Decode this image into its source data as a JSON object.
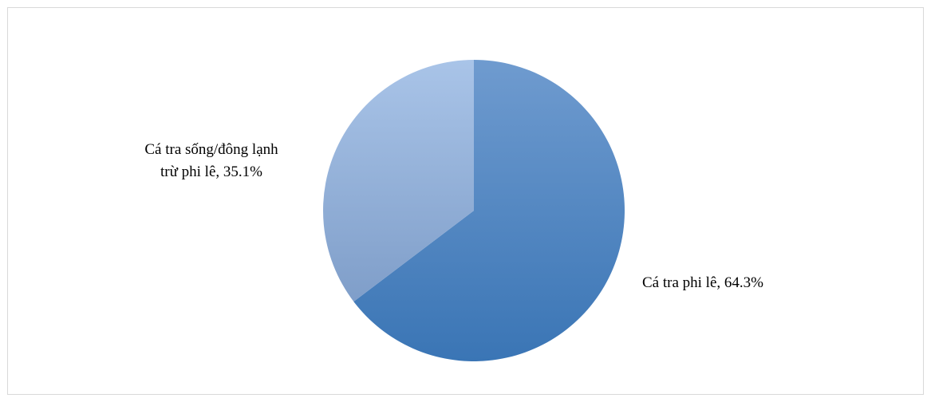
{
  "chart_data": {
    "type": "pie",
    "title": "",
    "start_angle_deg": 0,
    "direction": "clockwise",
    "slices": [
      {
        "label": "Cá tra phi lê",
        "value": 64.3,
        "display": "64.3%",
        "label_position": "right",
        "color_top": "#6f9bcf",
        "color_bottom": "#3a75b5"
      },
      {
        "label": "Cá tra sống/đông lạnh trừ phi lê",
        "value": 35.1,
        "display": "35.1%",
        "label_position": "left",
        "color_top": "#a9c4e8",
        "color_bottom": "#7f9ec9"
      }
    ],
    "label_lines": [
      {
        "slice": 0,
        "text": "Cá tra phi lê, 64.3%"
      },
      {
        "slice": 1,
        "text": "Cá tra sống/đông lạnh"
      },
      {
        "slice": 1,
        "text": "trừ phi lê, 35.1%"
      }
    ],
    "legend": "none"
  }
}
